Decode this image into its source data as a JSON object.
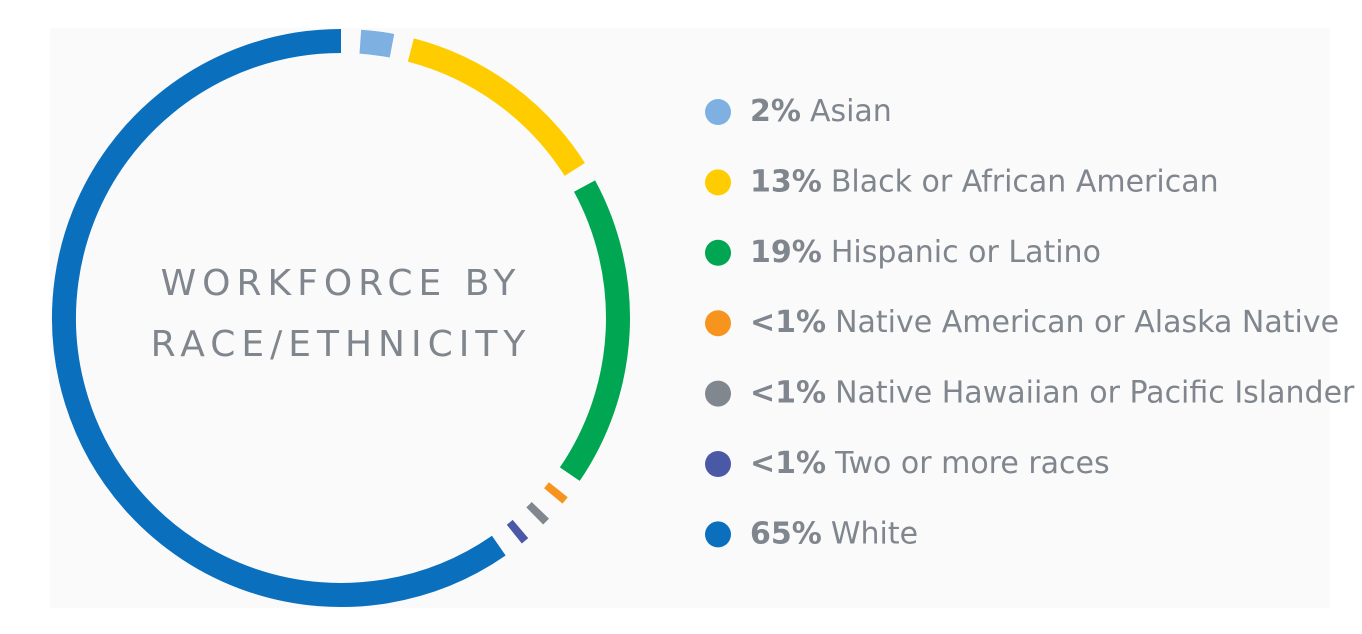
{
  "chart_data": {
    "type": "donut",
    "title": [
      "WORKFORCE BY",
      "RACE/ETHNICITY"
    ],
    "categories": [
      "Asian",
      "Black or African American",
      "Hispanic or Latino",
      "Native American or Alaska Native",
      "Native Hawaiian or Pacific Islander",
      "Two or more races",
      "White"
    ],
    "values": [
      2,
      13,
      19,
      0.5,
      0.5,
      0.5,
      65
    ],
    "value_labels": [
      "2%",
      "13%",
      "19%",
      "<1%",
      "<1%",
      "<1%",
      "65%"
    ],
    "colors": [
      "#7fb0e2",
      "#ffcc00",
      "#00a651",
      "#f7941d",
      "#80878f",
      "#4b58a6",
      "#0a70be"
    ]
  }
}
